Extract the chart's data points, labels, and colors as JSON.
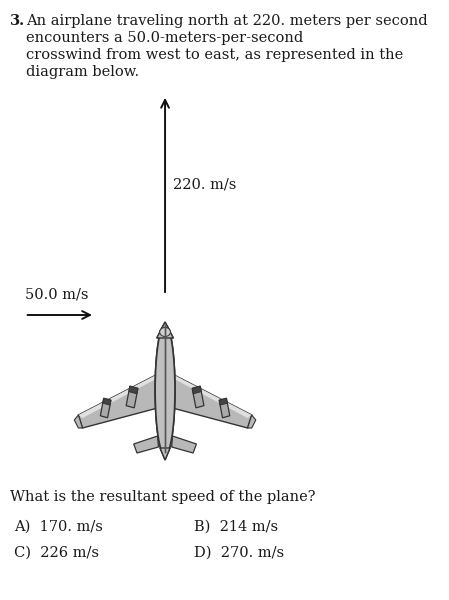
{
  "question_number": "3.",
  "question_text_line1": "An airplane traveling north at 220. meters per second",
  "question_text_line2": "encounters a 50.0-meters-per-second",
  "question_text_line3": "crosswind from west to east, as represented in the",
  "question_text_line4": "diagram below.",
  "north_arrow_label": "220. m/s",
  "wind_arrow_label": "50.0 m/s",
  "sub_question": "What is the resultant speed of the plane?",
  "answer_A": "A)  170. m/s",
  "answer_B": "B)  214 m/s",
  "answer_C": "C)  226 m/s",
  "answer_D": "D)  270. m/s",
  "bg_color": "#ffffff",
  "text_color": "#1a1a1a",
  "arrow_color": "#111111",
  "plane_body_color": "#c0c0c0",
  "plane_wing_color": "#b8b8b8",
  "plane_edge_color": "#333333",
  "plane_dark_color": "#555555",
  "plane_light_color": "#e0e0e0",
  "engine_color": "#aaaaaa",
  "engine_dark": "#444444"
}
